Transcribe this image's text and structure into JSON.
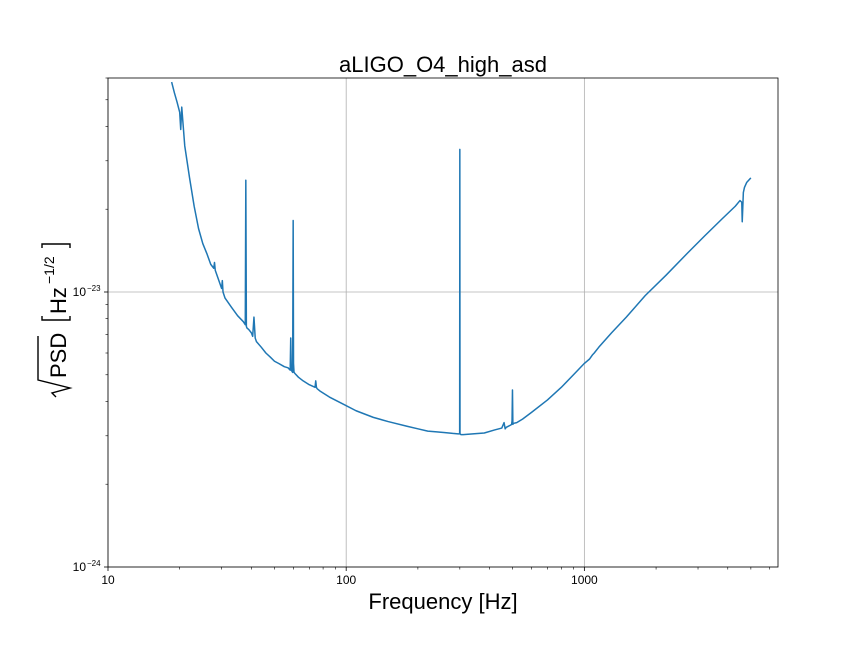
{
  "chart_data": {
    "type": "line",
    "title": "aLIGO_O4_high_asd",
    "xlabel": "Frequency [Hz]",
    "ylabel": {
      "radicand": "PSD",
      "units_base": "Hz",
      "units_exp": "−1/2"
    },
    "x_scale": "log",
    "y_scale": "log",
    "xlim": [
      10,
      6500
    ],
    "ylim": [
      1e-24,
      6e-23
    ],
    "grid": true,
    "legend": "none",
    "x_ticks": [
      {
        "value": 10,
        "label": "10"
      },
      {
        "value": 100,
        "label": "100"
      },
      {
        "value": 1000,
        "label": "1000"
      }
    ],
    "y_ticks": [
      {
        "value": 1e-24,
        "base": "10",
        "exp": "−24"
      },
      {
        "value": 1e-23,
        "base": "10",
        "exp": "−23"
      }
    ],
    "series": [
      {
        "color": "#1f77b4",
        "x": [
          18.5,
          19,
          19.5,
          20,
          20.2,
          20.4,
          21,
          22,
          23,
          24,
          25,
          26,
          27,
          27.8,
          28,
          28.2,
          29,
          30,
          30.2,
          30.4,
          31,
          33,
          35,
          37,
          37.7,
          37.9,
          38.1,
          38.3,
          39,
          40,
          40.5,
          41,
          41.5,
          42,
          44,
          46,
          48,
          50,
          52,
          55,
          57,
          58.2,
          58.5,
          58.8,
          59.6,
          59.9,
          60.1,
          60.4,
          61,
          63,
          66,
          70,
          74,
          74.5,
          75,
          75.5,
          78,
          85,
          95,
          110,
          130,
          150,
          180,
          200,
          220,
          240,
          260,
          280,
          295,
          299.5,
          300,
          300.5,
          303,
          310,
          340,
          380,
          420,
          450,
          460,
          465,
          470,
          480,
          490,
          495,
          497,
          499,
          501,
          503,
          505,
          520,
          550,
          600,
          700,
          800,
          900,
          1000,
          1050,
          1080,
          1100,
          1150,
          1300,
          1500,
          1800,
          2200,
          2700,
          3200,
          3800,
          4300,
          4500,
          4580,
          4600,
          4650,
          4700,
          4800,
          5000
        ],
        "y": [
          5.8e-23,
          5.3e-23,
          4.9e-23,
          4.5e-23,
          3.9e-23,
          4.7e-23,
          3.4e-23,
          2.6e-23,
          2.05e-23,
          1.7e-23,
          1.5e-23,
          1.38e-23,
          1.26e-23,
          1.22e-23,
          1.28e-23,
          1.2e-23,
          1.12e-23,
          1.03e-23,
          1.1e-23,
          1e-23,
          9.5e-24,
          8.8e-24,
          8.2e-24,
          7.8e-24,
          7.6e-24,
          2.55e-23,
          7.5e-24,
          7.4e-24,
          7.3e-24,
          7.1e-24,
          6.9e-24,
          8.1e-24,
          6.8e-24,
          6.6e-24,
          6.3e-24,
          6e-24,
          5.8e-24,
          5.6e-24,
          5.5e-24,
          5.35e-24,
          5.3e-24,
          5.2e-24,
          6.8e-24,
          5.2e-24,
          5.1e-24,
          1.82e-23,
          5.5e-24,
          5.1e-24,
          5.05e-24,
          4.9e-24,
          4.75e-24,
          4.6e-24,
          4.5e-24,
          4.75e-24,
          4.5e-24,
          4.45e-24,
          4.35e-24,
          4.15e-24,
          3.95e-24,
          3.7e-24,
          3.5e-24,
          3.38e-24,
          3.25e-24,
          3.18e-24,
          3.12e-24,
          3.1e-24,
          3.08e-24,
          3.06e-24,
          3.05e-24,
          3.05e-24,
          3.3e-23,
          3.05e-24,
          3.03e-24,
          3.03e-24,
          3.05e-24,
          3.07e-24,
          3.15e-24,
          3.2e-24,
          3.35e-24,
          3.18e-24,
          3.22e-24,
          3.25e-24,
          3.28e-24,
          3.3e-24,
          3.4e-24,
          4.4e-24,
          3.3e-24,
          3.32e-24,
          3.33e-24,
          3.35e-24,
          3.45e-24,
          3.65e-24,
          4.05e-24,
          4.5e-24,
          5e-24,
          5.5e-24,
          5.7e-24,
          5.9e-24,
          6e-24,
          6.3e-24,
          7.1e-24,
          8.1e-24,
          9.7e-24,
          1.15e-23,
          1.38e-23,
          1.6e-23,
          1.85e-23,
          2.05e-23,
          2.15e-23,
          2.12e-23,
          1.8e-23,
          2.3e-23,
          2.4e-23,
          2.5e-23,
          2.6e-23
        ]
      }
    ]
  }
}
